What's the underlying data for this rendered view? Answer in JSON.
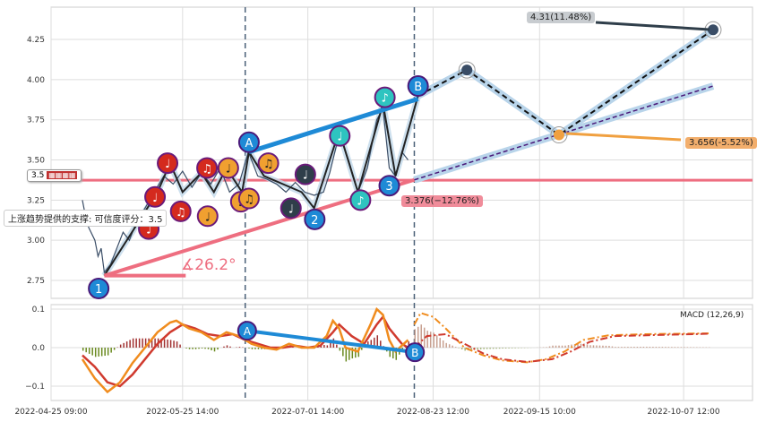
{
  "chart_data": {
    "type": "line",
    "title": "",
    "price_axis": {
      "ylim": [
        2.68,
        4.45
      ],
      "ticks": [
        2.75,
        3.0,
        3.25,
        3.5,
        3.75,
        4.0,
        4.25
      ],
      "tick_labels": [
        "2.75",
        "3.00",
        "3.25",
        "3.50",
        "3.75",
        "4.00",
        "4.25"
      ]
    },
    "macd_axis": {
      "ylim": [
        -0.135,
        0.115
      ],
      "ticks": [
        -0.1,
        0.0,
        0.1
      ],
      "tick_labels": [
        "−0.1",
        "0.0",
        "0.1"
      ]
    },
    "x_range": [
      0,
      112
    ],
    "x_ticks": [
      {
        "x": 0,
        "label": "2022-04-25 09:00"
      },
      {
        "x": 21,
        "label": "2022-05-25 14:00"
      },
      {
        "x": 41,
        "label": "2022-07-01 14:00"
      },
      {
        "x": 61,
        "label": "2022-08-23 12:00"
      },
      {
        "x": 78,
        "label": "2022-09-15 10:00"
      },
      {
        "x": 101,
        "label": "2022-10-07 12:00"
      }
    ],
    "vlines": [
      31,
      58
    ],
    "price": [
      [
        5,
        3.25
      ],
      [
        5.5,
        3.15
      ],
      [
        6,
        3.08
      ],
      [
        7,
        3.0
      ],
      [
        7.5,
        2.9
      ],
      [
        8,
        2.95
      ],
      [
        8.5,
        2.8
      ],
      [
        9.5,
        2.85
      ],
      [
        10.5,
        2.95
      ],
      [
        11.5,
        3.05
      ],
      [
        12.5,
        3.0
      ],
      [
        13.5,
        3.1
      ],
      [
        15,
        3.2
      ],
      [
        16.5,
        3.3
      ],
      [
        18,
        3.4
      ],
      [
        19.5,
        3.35
      ],
      [
        21,
        3.43
      ],
      [
        22.5,
        3.33
      ],
      [
        24,
        3.42
      ],
      [
        25.5,
        3.35
      ],
      [
        27,
        3.45
      ],
      [
        28.5,
        3.3
      ],
      [
        30,
        3.35
      ],
      [
        31.5,
        3.55
      ],
      [
        33,
        3.4
      ],
      [
        34.5,
        3.38
      ],
      [
        36,
        3.35
      ],
      [
        37.5,
        3.3
      ],
      [
        39,
        3.36
      ],
      [
        40.5,
        3.3
      ],
      [
        42,
        3.28
      ],
      [
        43.5,
        3.3
      ],
      [
        44.5,
        3.42
      ],
      [
        46,
        3.66
      ],
      [
        47.5,
        3.5
      ],
      [
        49,
        3.3
      ],
      [
        50.5,
        3.45
      ],
      [
        52,
        3.75
      ],
      [
        53,
        3.82
      ],
      [
        54,
        3.45
      ],
      [
        55,
        3.4
      ],
      [
        56,
        3.55
      ],
      [
        57,
        3.5
      ]
    ],
    "zigzag": [
      [
        8.5,
        2.78
      ],
      [
        17,
        3.3
      ],
      [
        19,
        3.48
      ],
      [
        21,
        3.3
      ],
      [
        24,
        3.42
      ],
      [
        26,
        3.3
      ],
      [
        28,
        3.45
      ],
      [
        30.5,
        3.3
      ],
      [
        31.6,
        3.55
      ],
      [
        34,
        3.4
      ],
      [
        40,
        3.3
      ],
      [
        42,
        3.2
      ],
      [
        46,
        3.68
      ],
      [
        49,
        3.3
      ],
      [
        53,
        3.85
      ],
      [
        55,
        3.4
      ],
      [
        58.6,
        3.9
      ]
    ],
    "projection": [
      [
        58.6,
        3.9
      ],
      [
        66.4,
        4.06
      ],
      [
        81.1,
        3.656
      ],
      [
        105.7,
        4.31
      ]
    ],
    "support_line": [
      [
        8.5,
        2.78
      ],
      [
        58,
        3.376
      ],
      [
        105.7,
        3.96
      ]
    ],
    "resistance_line": [
      [
        31.6,
        3.55
      ],
      [
        58.6,
        3.88
      ]
    ],
    "horizontal_level": 3.374,
    "angle_base": [
      [
        8.5,
        2.78
      ],
      [
        21.5,
        2.78
      ]
    ],
    "angle_label": "∡26.2°",
    "wave_labels": [
      {
        "label": "1",
        "x": 7.6,
        "y": 2.7
      },
      {
        "label": "2",
        "x": 42.1,
        "y": 3.13
      },
      {
        "label": "3",
        "x": 54,
        "y": 3.34
      },
      {
        "label": "A",
        "x": 31.6,
        "y": 3.61
      },
      {
        "label": "B",
        "x": 58.6,
        "y": 3.96
      }
    ],
    "notes": [
      {
        "x": 18.6,
        "y": 3.48,
        "c": "#d42a1e",
        "g": "♩"
      },
      {
        "x": 16.6,
        "y": 3.27,
        "c": "#d42a1e",
        "g": "♩"
      },
      {
        "x": 15.6,
        "y": 3.07,
        "c": "#d42a1e",
        "g": "♩"
      },
      {
        "x": 20.7,
        "y": 3.18,
        "c": "#d42a1e",
        "g": "♫"
      },
      {
        "x": 24.9,
        "y": 3.45,
        "c": "#d42a1e",
        "g": "♫"
      },
      {
        "x": 28.3,
        "y": 3.45,
        "c": "#f0a030",
        "g": "♩"
      },
      {
        "x": 30.3,
        "y": 3.24,
        "c": "#f0a030",
        "g": "♩"
      },
      {
        "x": 31.6,
        "y": 3.26,
        "c": "#f0a030",
        "g": "♫"
      },
      {
        "x": 25,
        "y": 3.15,
        "c": "#f0a030",
        "g": "♩"
      },
      {
        "x": 34.7,
        "y": 3.48,
        "c": "#f0a030",
        "g": "♫"
      },
      {
        "x": 38.3,
        "y": 3.2,
        "c": "#2f3e4a",
        "g": "♩"
      },
      {
        "x": 40.6,
        "y": 3.41,
        "c": "#2f3e4a",
        "g": "♩"
      },
      {
        "x": 46.1,
        "y": 3.65,
        "c": "#2ec4c0",
        "g": "♩"
      },
      {
        "x": 49.4,
        "y": 3.25,
        "c": "#2ec4c0",
        "g": "♪"
      },
      {
        "x": 53.3,
        "y": 3.89,
        "c": "#2ec4c0",
        "g": "♪"
      }
    ],
    "annotations": {
      "target_high": "4.31(11.48%)",
      "target_low": "3.656(-5.52%)",
      "support_value": "3.376(−12.76%)"
    },
    "legend_label": "3.5",
    "tooltip": "上涨趋势提供的支撑: 可信度评分：3.5",
    "macd_label": "MACD (12,26,9)",
    "macd": [
      [
        5,
        -0.03
      ],
      [
        7,
        -0.08
      ],
      [
        9,
        -0.115
      ],
      [
        11,
        -0.09
      ],
      [
        13,
        -0.04
      ],
      [
        15,
        0.0
      ],
      [
        17,
        0.04
      ],
      [
        19,
        0.065
      ],
      [
        20,
        0.07
      ],
      [
        22,
        0.05
      ],
      [
        24,
        0.04
      ],
      [
        26,
        0.02
      ],
      [
        28,
        0.04
      ],
      [
        30,
        0.03
      ],
      [
        32,
        0.01
      ],
      [
        34,
        0.0
      ],
      [
        36,
        -0.005
      ],
      [
        38,
        0.01
      ],
      [
        40,
        0.0
      ],
      [
        42,
        0.0
      ],
      [
        44,
        0.03
      ],
      [
        45,
        0.07
      ],
      [
        46,
        0.05
      ],
      [
        47,
        0.0
      ],
      [
        49,
        -0.01
      ],
      [
        51,
        0.06
      ],
      [
        52,
        0.1
      ],
      [
        53,
        0.085
      ],
      [
        54,
        0.02
      ],
      [
        55,
        -0.01
      ],
      [
        56,
        0.005
      ],
      [
        57,
        0.02
      ]
    ],
    "signal": [
      [
        5,
        -0.02
      ],
      [
        7,
        -0.05
      ],
      [
        9,
        -0.09
      ],
      [
        11,
        -0.1
      ],
      [
        13,
        -0.07
      ],
      [
        15,
        -0.03
      ],
      [
        17,
        0.01
      ],
      [
        19,
        0.04
      ],
      [
        21,
        0.06
      ],
      [
        23,
        0.05
      ],
      [
        25,
        0.035
      ],
      [
        27,
        0.03
      ],
      [
        29,
        0.035
      ],
      [
        31,
        0.02
      ],
      [
        33,
        0.01
      ],
      [
        35,
        0.0
      ],
      [
        37,
        0.0
      ],
      [
        39,
        0.005
      ],
      [
        41,
        0.0
      ],
      [
        43,
        0.005
      ],
      [
        45,
        0.04
      ],
      [
        46,
        0.06
      ],
      [
        48,
        0.03
      ],
      [
        50,
        0.01
      ],
      [
        52,
        0.06
      ],
      [
        53,
        0.08
      ],
      [
        54,
        0.05
      ],
      [
        56,
        0.01
      ],
      [
        57,
        0.0
      ]
    ],
    "macd_future": [
      [
        58,
        0.06
      ],
      [
        59,
        0.09
      ],
      [
        61,
        0.08
      ],
      [
        63,
        0.05
      ],
      [
        66,
        0.0
      ],
      [
        69,
        -0.02
      ],
      [
        72,
        -0.033
      ],
      [
        76,
        -0.038
      ],
      [
        79,
        -0.03
      ],
      [
        82,
        -0.01
      ],
      [
        85,
        0.02
      ],
      [
        89,
        0.032
      ],
      [
        95,
        0.035
      ],
      [
        105,
        0.037
      ]
    ],
    "signal_future": [
      [
        58,
        0.0
      ],
      [
        60,
        0.03
      ],
      [
        63,
        0.035
      ],
      [
        66,
        0.01
      ],
      [
        69,
        -0.015
      ],
      [
        72,
        -0.03
      ],
      [
        76,
        -0.037
      ],
      [
        80,
        -0.03
      ],
      [
        83,
        -0.01
      ],
      [
        86,
        0.015
      ],
      [
        90,
        0.03
      ],
      [
        105,
        0.036
      ]
    ],
    "macd_trend": [
      {
        "label": "A",
        "x": 31.3,
        "y": 0.044
      },
      {
        "label": "B",
        "x": 58.1,
        "y": -0.012
      }
    ]
  },
  "colors": {
    "macd": "#f08c1e",
    "signal": "#d03a2e",
    "support": "#ee6e80",
    "blue": "#1e8ad6",
    "band": "#b8d4ea"
  }
}
